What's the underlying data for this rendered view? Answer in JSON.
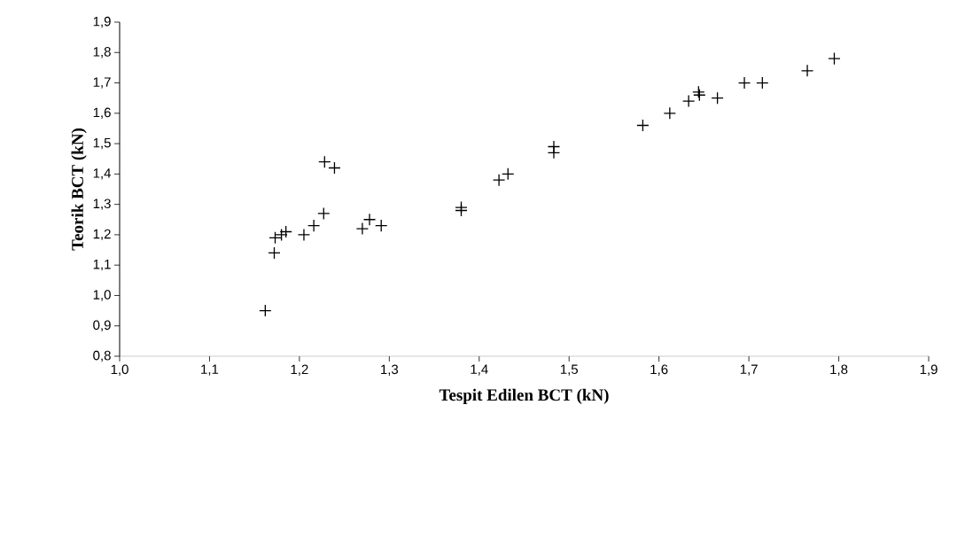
{
  "chart_data": {
    "type": "scatter",
    "xlabel": "Tespit Edilen BCT (kN)",
    "ylabel": "Teorik BCT (kN)",
    "marker": "cross",
    "xlim": [
      1.0,
      1.9
    ],
    "ylim": [
      0.8,
      1.9
    ],
    "xticks": [
      {
        "value": 1.0,
        "label": "1,0"
      },
      {
        "value": 1.1,
        "label": "1,1"
      },
      {
        "value": 1.2,
        "label": "1,2"
      },
      {
        "value": 1.3,
        "label": "1,3"
      },
      {
        "value": 1.4,
        "label": "1,4"
      },
      {
        "value": 1.5,
        "label": "1,5"
      },
      {
        "value": 1.6,
        "label": "1,6"
      },
      {
        "value": 1.7,
        "label": "1,7"
      },
      {
        "value": 1.8,
        "label": "1,8"
      },
      {
        "value": 1.9,
        "label": "1,9"
      }
    ],
    "yticks": [
      {
        "value": 0.8,
        "label": "0,8"
      },
      {
        "value": 0.9,
        "label": "0,9"
      },
      {
        "value": 1.0,
        "label": "1,0"
      },
      {
        "value": 1.1,
        "label": "1,1"
      },
      {
        "value": 1.2,
        "label": "1,2"
      },
      {
        "value": 1.3,
        "label": "1,3"
      },
      {
        "value": 1.4,
        "label": "1,4"
      },
      {
        "value": 1.5,
        "label": "1,5"
      },
      {
        "value": 1.6,
        "label": "1,6"
      },
      {
        "value": 1.7,
        "label": "1,7"
      },
      {
        "value": 1.8,
        "label": "1,8"
      },
      {
        "value": 1.9,
        "label": "1,9"
      }
    ],
    "series": [
      {
        "color": "#000000",
        "x": [
          1.162,
          1.172,
          1.173,
          1.18,
          1.185,
          1.205,
          1.216,
          1.227,
          1.228,
          1.239,
          1.27,
          1.278,
          1.291,
          1.38,
          1.38,
          1.422,
          1.432,
          1.483,
          1.483,
          1.582,
          1.612,
          1.633,
          1.644,
          1.645,
          1.665,
          1.695,
          1.715,
          1.765,
          1.795
        ],
        "values": [
          0.95,
          1.14,
          1.19,
          1.2,
          1.21,
          1.2,
          1.23,
          1.27,
          1.44,
          1.42,
          1.22,
          1.25,
          1.23,
          1.29,
          1.28,
          1.38,
          1.4,
          1.47,
          1.49,
          1.56,
          1.6,
          1.64,
          1.67,
          1.66,
          1.65,
          1.7,
          1.7,
          1.74,
          1.78
        ]
      }
    ]
  }
}
